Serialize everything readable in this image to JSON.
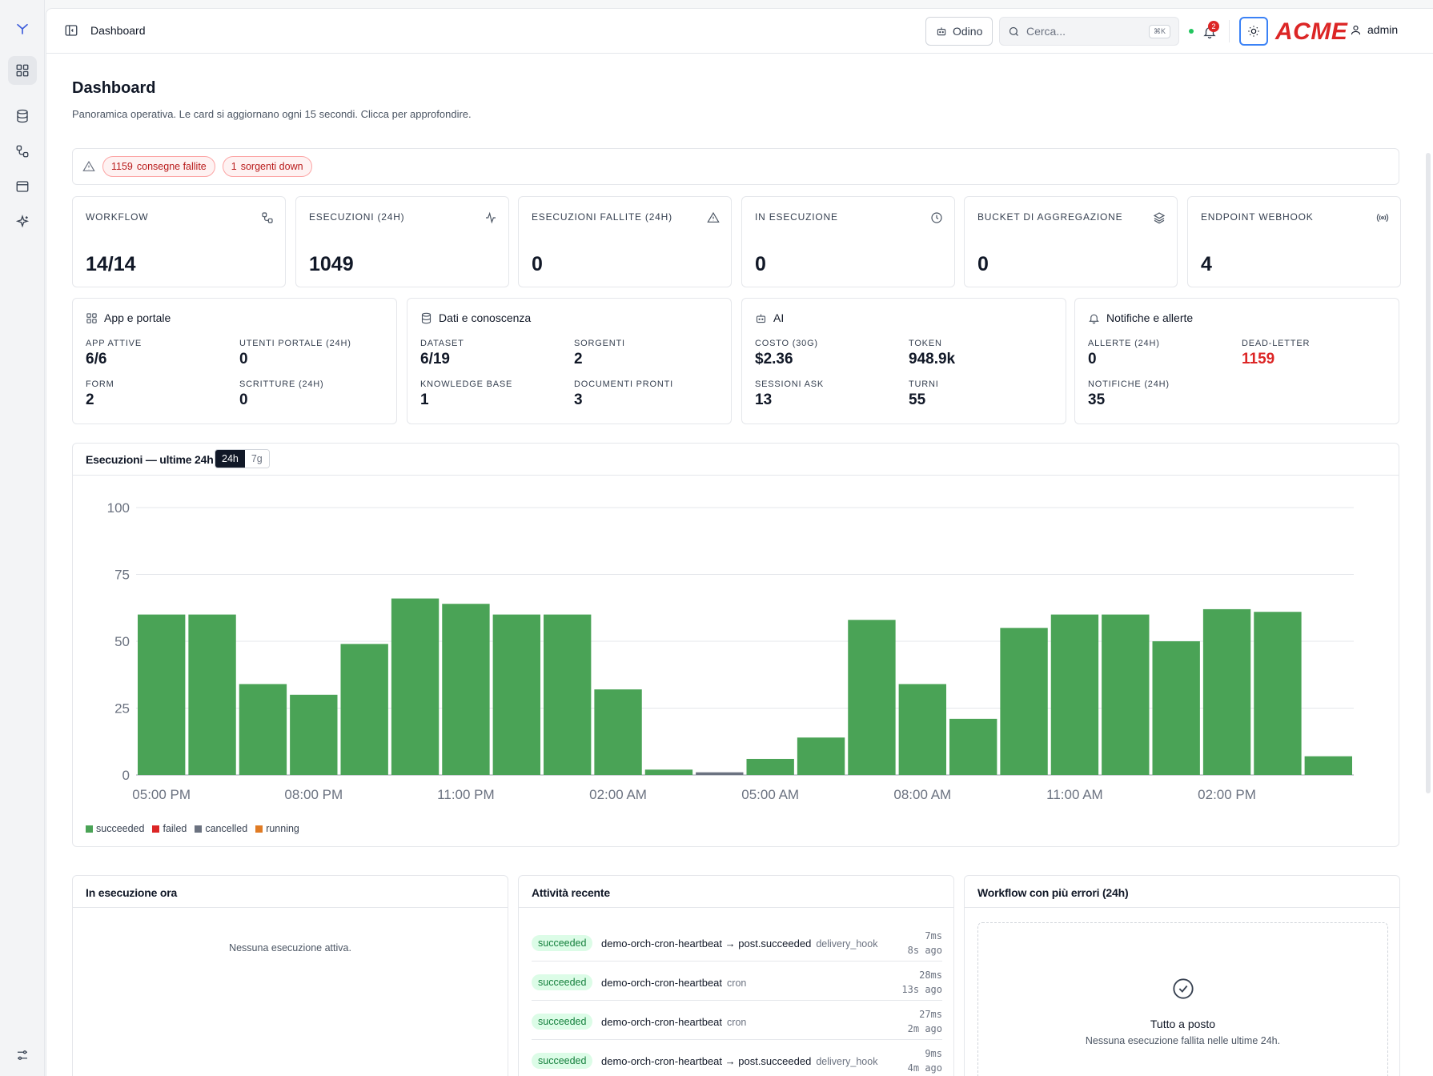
{
  "header": {
    "title": "Dashboard",
    "odino_label": "Odino",
    "search_placeholder": "Cerca...",
    "search_shortcut": "⌘K",
    "notification_count": "2",
    "brand": "ACME",
    "user": "admin"
  },
  "page": {
    "title": "Dashboard",
    "subtitle": "Panoramica operativa. Le card si aggiornano ogni 15 secondi. Clicca per approfondire."
  },
  "alerts": [
    {
      "count": "1159",
      "label": "consegne fallite"
    },
    {
      "count": "1",
      "label": "sorgenti down"
    }
  ],
  "kpis": [
    {
      "label": "Workflow",
      "value": "14/14",
      "icon": "workflow-icon"
    },
    {
      "label": "Esecuzioni (24h)",
      "value": "1049",
      "icon": "activity-icon"
    },
    {
      "label": "Esecuzioni fallite (24h)",
      "value": "0",
      "icon": "warning-icon"
    },
    {
      "label": "In esecuzione",
      "value": "0",
      "icon": "clock-icon"
    },
    {
      "label": "Bucket di aggregazione",
      "value": "0",
      "icon": "layers-icon"
    },
    {
      "label": "Endpoint webhook",
      "value": "4",
      "icon": "broadcast-icon"
    }
  ],
  "groups": [
    {
      "title": "App e portale",
      "icon": "grid-icon",
      "metrics": [
        {
          "label": "App attive",
          "value": "6/6"
        },
        {
          "label": "Utenti portale (24h)",
          "value": "0"
        },
        {
          "label": "Form",
          "value": "2"
        },
        {
          "label": "Scritture (24h)",
          "value": "0"
        }
      ]
    },
    {
      "title": "Dati e conoscenza",
      "icon": "database-icon",
      "metrics": [
        {
          "label": "Dataset",
          "value": "6/19"
        },
        {
          "label": "Sorgenti",
          "value": "2"
        },
        {
          "label": "Knowledge base",
          "value": "1"
        },
        {
          "label": "Documenti pronti",
          "value": "3"
        }
      ]
    },
    {
      "title": "AI",
      "icon": "bot-icon",
      "metrics": [
        {
          "label": "Costo (30g)",
          "value": "$2.36"
        },
        {
          "label": "Token",
          "value": "948.9k"
        },
        {
          "label": "Sessioni ask",
          "value": "13"
        },
        {
          "label": "Turni",
          "value": "55"
        }
      ]
    },
    {
      "title": "Notifiche e allerte",
      "icon": "bell-icon",
      "metrics": [
        {
          "label": "Allerte (24h)",
          "value": "0"
        },
        {
          "label": "Dead-letter",
          "value": "1159",
          "color": "#dc2626"
        },
        {
          "label": "Notifiche (24h)",
          "value": "35"
        }
      ]
    }
  ],
  "chart": {
    "title": "Esecuzioni — ultime 24h",
    "ranges": [
      "24h",
      "7g"
    ],
    "active_range": "24h"
  },
  "chart_data": {
    "type": "bar",
    "stacked": true,
    "ylim": [
      0,
      100
    ],
    "yticks": [
      0,
      25,
      50,
      75,
      100
    ],
    "grid": true,
    "legend_position": "bottom-left",
    "x_tick_labels": [
      "05:00 PM",
      "08:00 PM",
      "11:00 PM",
      "02:00 AM",
      "05:00 AM",
      "08:00 AM",
      "11:00 AM",
      "02:00 PM"
    ],
    "tick_every": 3,
    "series": [
      {
        "name": "succeeded",
        "color": "#4aa356",
        "values": [
          60,
          60,
          34,
          30,
          49,
          66,
          64,
          60,
          60,
          32,
          2,
          0,
          6,
          14,
          58,
          34,
          21,
          55,
          60,
          60,
          50,
          62,
          61,
          7
        ]
      },
      {
        "name": "failed",
        "color": "#dc2626",
        "values": [
          0,
          0,
          0,
          0,
          0,
          0,
          0,
          0,
          0,
          0,
          0,
          0,
          0,
          0,
          0,
          0,
          0,
          0,
          0,
          0,
          0,
          0,
          0,
          0
        ]
      },
      {
        "name": "cancelled",
        "color": "#6b7280",
        "values": [
          0,
          0,
          0,
          0,
          0,
          0,
          0,
          0,
          0,
          0,
          0,
          1,
          0,
          0,
          0,
          0,
          0,
          0,
          0,
          0,
          0,
          0,
          0,
          0
        ]
      },
      {
        "name": "running",
        "color": "#e07b24",
        "values": [
          0,
          0,
          0,
          0,
          0,
          0,
          0,
          0,
          0,
          0,
          0,
          0,
          0,
          0,
          0,
          0,
          0,
          0,
          0,
          0,
          0,
          0,
          0,
          0
        ]
      }
    ]
  },
  "running_now": {
    "title": "In esecuzione ora",
    "empty": "Nessuna esecuzione attiva."
  },
  "recent": {
    "title": "Attività recente",
    "rows": [
      {
        "status": "succeeded",
        "name": "demo-orch-cron-heartbeat → post.succeeded",
        "trigger": "delivery_hook",
        "duration": "7ms",
        "ago": "8s ago"
      },
      {
        "status": "succeeded",
        "name": "demo-orch-cron-heartbeat",
        "trigger": "cron",
        "duration": "28ms",
        "ago": "13s ago"
      },
      {
        "status": "succeeded",
        "name": "demo-orch-cron-heartbeat",
        "trigger": "cron",
        "duration": "27ms",
        "ago": "2m ago"
      },
      {
        "status": "succeeded",
        "name": "demo-orch-cron-heartbeat → post.succeeded",
        "trigger": "delivery_hook",
        "duration": "9ms",
        "ago": "4m ago"
      }
    ]
  },
  "top_errors": {
    "title": "Workflow con più errori (24h)",
    "ok_title": "Tutto a posto",
    "ok_sub": "Nessuna esecuzione fallita nelle ultime 24h."
  }
}
